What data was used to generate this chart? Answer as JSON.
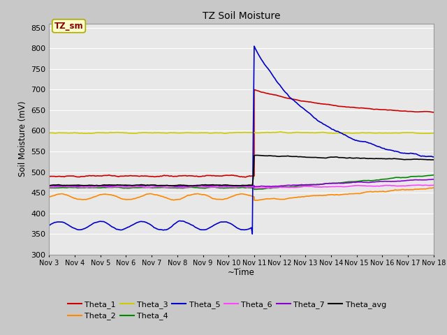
{
  "title": "TZ Soil Moisture",
  "ylabel": "Soil Moisture (mV)",
  "xlabel": "~Time",
  "xlim": [
    3,
    18
  ],
  "ylim": [
    300,
    860
  ],
  "yticks": [
    300,
    350,
    400,
    450,
    500,
    550,
    600,
    650,
    700,
    750,
    800,
    850
  ],
  "xtick_labels": [
    "Nov 3",
    "Nov 4",
    "Nov 5",
    "Nov 6",
    "Nov 7",
    "Nov 8",
    "Nov 9",
    "Nov 10",
    "Nov 11",
    "Nov 12",
    "Nov 13",
    "Nov 14",
    "Nov 15",
    "Nov 16",
    "Nov 17",
    "Nov 18"
  ],
  "fig_bg": "#c8c8c8",
  "plot_bg": "#e8e8e8",
  "series_colors": {
    "Theta_1": "#cc0000",
    "Theta_2": "#ff8800",
    "Theta_3": "#cccc00",
    "Theta_4": "#008800",
    "Theta_5": "#0000cc",
    "Theta_6": "#ff44ff",
    "Theta_7": "#8800cc",
    "Theta_avg": "#000000"
  },
  "annotation_label": "TZ_sm",
  "annotation_color": "#880000",
  "annotation_bg": "#ffffcc",
  "annotation_edge": "#aaaa00"
}
